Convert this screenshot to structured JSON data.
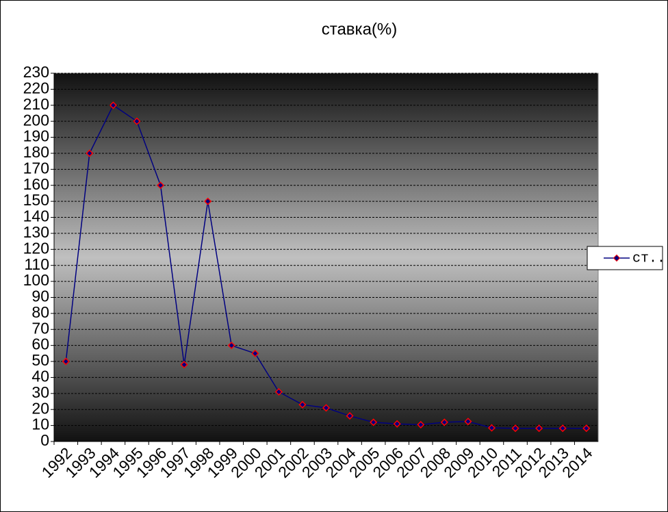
{
  "chart_data": {
    "type": "line",
    "title": "ставка(%)",
    "categories": [
      "1992",
      "1993",
      "1994",
      "1995",
      "1996",
      "1997",
      "1998",
      "1999",
      "2000",
      "2001",
      "2002",
      "2003",
      "2004",
      "2005",
      "2006",
      "2007",
      "2008",
      "2009",
      "2010",
      "2011",
      "2012",
      "2013",
      "2014"
    ],
    "series": [
      {
        "name": "ст...",
        "color": "#000080",
        "marker_color": "#ff0000",
        "values": [
          50,
          180,
          210,
          200,
          160,
          48,
          150,
          60,
          55,
          31,
          23,
          21,
          16,
          12,
          11,
          10.5,
          12,
          12.5,
          8.5,
          8.25,
          8.25,
          8.25,
          8.25
        ]
      }
    ],
    "ylim": [
      0,
      230
    ],
    "yticks": [
      0,
      10,
      20,
      30,
      40,
      50,
      60,
      70,
      80,
      90,
      100,
      110,
      120,
      130,
      140,
      150,
      160,
      170,
      180,
      190,
      200,
      210,
      220,
      230
    ],
    "grid": true,
    "legend": "right"
  }
}
